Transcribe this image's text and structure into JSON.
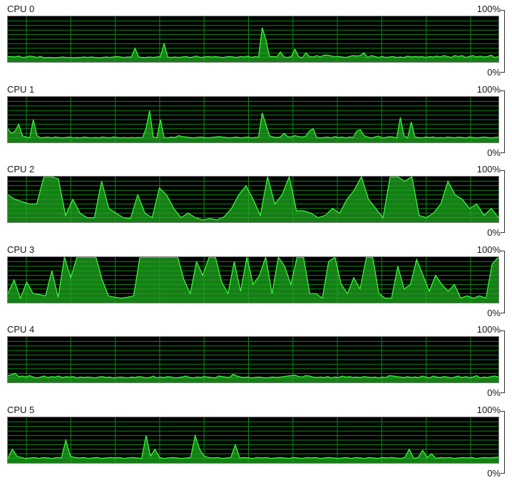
{
  "scale": {
    "top_label": "100%",
    "bottom_label": "0%"
  },
  "colors": {
    "grid": "#0f8a14",
    "fill": "#1fa81f",
    "stroke": "#3cff3c",
    "background": "#000000"
  },
  "chart_data": [
    {
      "type": "area",
      "name": "CPU 0",
      "ylim": [
        0,
        100
      ],
      "values": [
        12,
        12,
        11,
        13,
        10,
        11,
        13,
        12,
        10,
        12,
        9,
        10,
        10,
        9,
        10,
        11,
        10,
        10,
        9,
        10,
        10,
        11,
        10,
        11,
        10,
        9,
        10,
        11,
        10,
        11,
        12,
        11,
        10,
        11,
        11,
        30,
        11,
        10,
        10,
        11,
        10,
        11,
        12,
        40,
        11,
        10,
        11,
        10,
        11,
        12,
        10,
        11,
        13,
        10,
        11,
        12,
        11,
        12,
        11,
        10,
        11,
        12,
        11,
        10,
        12,
        11,
        13,
        10,
        12,
        11,
        75,
        50,
        12,
        12,
        11,
        22,
        11,
        10,
        12,
        28,
        12,
        9,
        20,
        12,
        11,
        14,
        11,
        15,
        15,
        13,
        12,
        12,
        11,
        10,
        12,
        14,
        13,
        14,
        20,
        10,
        14,
        12,
        10,
        12,
        10,
        11,
        12,
        10,
        11,
        10,
        13,
        11,
        12,
        11,
        12,
        10,
        12,
        11,
        13,
        11,
        14,
        12,
        10,
        14,
        12,
        14,
        10,
        12,
        14,
        11,
        13,
        11,
        12,
        15,
        10,
        12
      ]
    },
    {
      "type": "area",
      "name": "CPU 1",
      "ylim": [
        0,
        100
      ],
      "values": [
        30,
        20,
        25,
        40,
        15,
        12,
        10,
        50,
        15,
        10,
        11,
        12,
        10,
        12,
        11,
        10,
        11,
        12,
        10,
        11,
        10,
        12,
        11,
        10,
        11,
        10,
        12,
        11,
        10,
        12,
        11,
        10,
        11,
        10,
        11,
        10,
        11,
        10,
        30,
        70,
        12,
        10,
        50,
        11,
        10,
        12,
        11,
        15,
        13,
        12,
        11,
        10,
        11,
        12,
        11,
        10,
        11,
        12,
        13,
        12,
        11,
        10,
        11,
        12,
        10,
        11,
        12,
        10,
        11,
        12,
        65,
        40,
        15,
        12,
        11,
        12,
        20,
        13,
        12,
        15,
        13,
        12,
        14,
        25,
        30,
        11,
        10,
        11,
        12,
        10,
        13,
        11,
        12,
        10,
        12,
        11,
        25,
        28,
        15,
        12,
        10,
        12,
        14,
        10,
        11,
        13,
        12,
        10,
        55,
        15,
        10,
        45,
        12,
        11,
        10,
        12,
        11,
        12,
        10,
        11,
        10,
        12,
        11,
        10,
        12,
        11,
        10,
        12,
        11,
        10,
        11,
        12,
        11,
        10,
        11,
        12
      ]
    },
    {
      "type": "area",
      "name": "CPU 2",
      "ylim": [
        0,
        100
      ],
      "values": [
        60,
        50,
        45,
        40,
        40,
        100,
        100,
        95,
        15,
        50,
        20,
        10,
        10,
        90,
        30,
        20,
        10,
        8,
        60,
        20,
        10,
        75,
        60,
        30,
        10,
        20,
        10,
        5,
        8,
        5,
        12,
        30,
        60,
        80,
        50,
        15,
        100,
        40,
        60,
        100,
        25,
        25,
        20,
        10,
        15,
        30,
        20,
        50,
        70,
        100,
        50,
        30,
        10,
        100,
        100,
        90,
        100,
        15,
        10,
        20,
        40,
        90,
        60,
        50,
        30,
        40,
        15,
        30,
        10
      ]
    },
    {
      "type": "area",
      "name": "CPU 3",
      "ylim": [
        0,
        100
      ],
      "values": [
        20,
        50,
        10,
        45,
        20,
        18,
        15,
        70,
        12,
        100,
        55,
        100,
        100,
        100,
        100,
        50,
        15,
        12,
        10,
        12,
        15,
        100,
        100,
        100,
        100,
        100,
        100,
        100,
        50,
        20,
        90,
        60,
        100,
        100,
        45,
        20,
        90,
        25,
        100,
        40,
        60,
        100,
        20,
        100,
        80,
        40,
        100,
        100,
        20,
        20,
        10,
        90,
        100,
        40,
        20,
        55,
        30,
        100,
        100,
        20,
        10,
        10,
        80,
        30,
        40,
        95,
        60,
        25,
        60,
        40,
        25,
        40,
        10,
        15,
        10,
        15,
        10,
        85,
        100
      ]
    },
    {
      "type": "area",
      "name": "CPU 4",
      "ylim": [
        0,
        100
      ],
      "values": [
        15,
        17,
        20,
        13,
        14,
        12,
        15,
        12,
        10,
        12,
        14,
        11,
        13,
        12,
        14,
        11,
        13,
        12,
        13,
        10,
        12,
        11,
        12,
        11,
        10,
        12,
        13,
        11,
        12,
        10,
        11,
        12,
        11,
        10,
        12,
        11,
        13,
        12,
        10,
        11,
        14,
        10,
        12,
        11,
        13,
        12,
        10,
        11,
        12,
        14,
        11,
        10,
        12,
        11,
        13,
        12,
        11,
        10,
        14,
        13,
        12,
        11,
        18,
        14,
        12,
        11,
        12,
        10,
        11,
        12,
        11,
        10,
        11,
        12,
        11,
        12,
        13,
        14,
        15,
        16,
        13,
        12,
        15,
        14,
        12,
        11,
        12,
        11,
        13,
        10,
        12,
        11,
        14,
        12,
        13,
        11,
        12,
        11,
        13,
        12,
        11,
        12,
        10,
        12,
        11,
        15,
        14,
        13,
        12,
        11,
        13,
        11,
        12,
        11,
        14,
        12,
        10,
        14,
        12,
        11,
        13,
        12,
        10,
        12,
        14,
        11,
        13,
        11,
        12,
        15,
        10,
        12,
        11,
        13,
        14,
        12
      ]
    },
    {
      "type": "area",
      "name": "CPU 5",
      "ylim": [
        0,
        100
      ],
      "values": [
        10,
        30,
        15,
        12,
        10,
        11,
        12,
        10,
        12,
        11,
        10,
        12,
        11,
        50,
        15,
        12,
        11,
        12,
        10,
        11,
        12,
        10,
        11,
        12,
        11,
        12,
        10,
        11,
        12,
        11,
        10,
        60,
        15,
        30,
        12,
        10,
        11,
        12,
        11,
        10,
        11,
        12,
        60,
        30,
        15,
        12,
        11,
        12,
        10,
        11,
        12,
        40,
        11,
        12,
        11,
        10,
        12,
        11,
        12,
        10,
        11,
        12,
        11,
        10,
        12,
        11,
        10,
        12,
        11,
        12,
        10,
        11,
        12,
        11,
        10,
        11,
        12,
        10,
        12,
        11,
        10,
        12,
        11,
        10,
        12,
        11,
        12,
        11,
        10,
        12,
        30,
        10,
        12,
        28,
        12,
        20,
        10,
        12,
        11,
        12,
        10,
        11,
        12,
        11,
        12,
        10,
        11,
        12,
        11,
        12,
        13
      ]
    }
  ]
}
